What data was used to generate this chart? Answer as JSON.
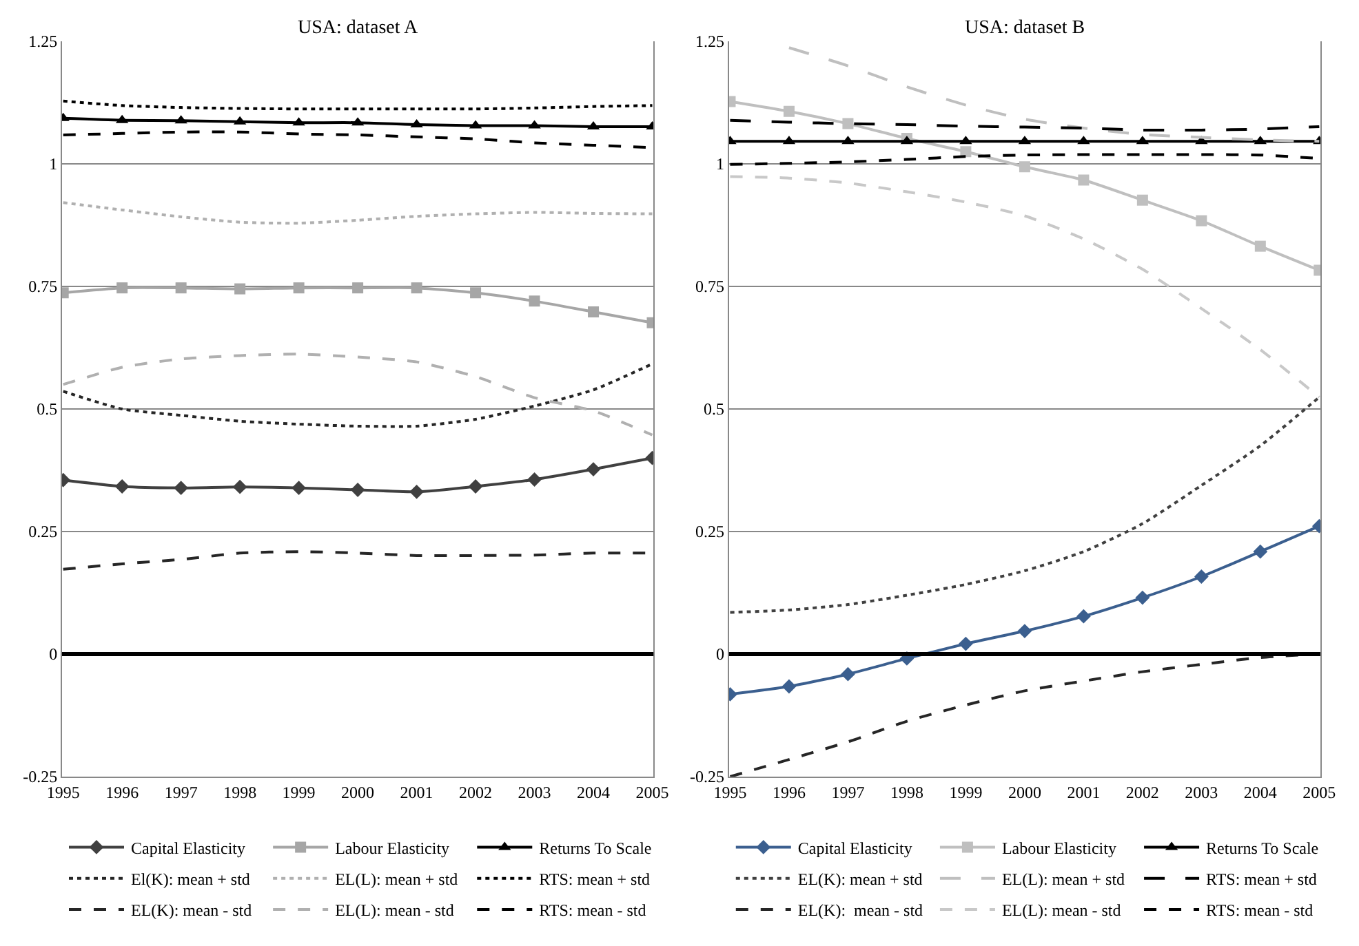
{
  "chart_data": [
    {
      "type": "line",
      "title": "USA: dataset A",
      "categories": [
        "1995",
        "1996",
        "1997",
        "1998",
        "1999",
        "2000",
        "2001",
        "2002",
        "2003",
        "2004",
        "2005"
      ],
      "ylim": [
        -0.25,
        1.25
      ],
      "yticks": [
        -0.25,
        0,
        0.25,
        0.5,
        0.75,
        1,
        1.25
      ],
      "grid": "y",
      "legend": "bottom",
      "ref_lines": [
        {
          "axis": "y",
          "value": 0,
          "color": "#000000"
        }
      ],
      "series": [
        {
          "name": "Capital Elasticity",
          "color": "#404040",
          "marker": "diamond",
          "line_style": "solid",
          "values": [
            0.355,
            0.342,
            0.339,
            0.341,
            0.339,
            0.335,
            0.331,
            0.342,
            0.356,
            0.377,
            0.4
          ]
        },
        {
          "name": "Labour Elasticity",
          "color": "#a6a6a6",
          "marker": "square",
          "line_style": "solid",
          "values": [
            0.737,
            0.747,
            0.747,
            0.745,
            0.747,
            0.747,
            0.747,
            0.737,
            0.72,
            0.698,
            0.676
          ]
        },
        {
          "name": "Returns To Scale",
          "color": "#000000",
          "marker": "triangle",
          "line_style": "solid",
          "values": [
            1.093,
            1.089,
            1.088,
            1.086,
            1.084,
            1.084,
            1.08,
            1.078,
            1.078,
            1.076,
            1.076
          ]
        },
        {
          "name": "El(K): mean + std",
          "color": "#262626",
          "marker": "none",
          "line_style": "dotted",
          "values": [
            0.536,
            0.5,
            0.487,
            0.475,
            0.469,
            0.465,
            0.465,
            0.479,
            0.506,
            0.539,
            0.592
          ]
        },
        {
          "name": "EL(L): mean + std",
          "color": "#b0b0b0",
          "marker": "none",
          "line_style": "dotted",
          "values": [
            0.921,
            0.906,
            0.892,
            0.881,
            0.879,
            0.885,
            0.893,
            0.898,
            0.901,
            0.899,
            0.898
          ]
        },
        {
          "name": "RTS: mean + std",
          "color": "#000000",
          "marker": "none",
          "line_style": "dotted",
          "values": [
            1.128,
            1.119,
            1.115,
            1.113,
            1.112,
            1.112,
            1.112,
            1.112,
            1.114,
            1.117,
            1.119
          ]
        },
        {
          "name": "EL(K): mean - std",
          "color": "#262626",
          "marker": "none",
          "line_style": "dashed",
          "values": [
            0.173,
            0.184,
            0.193,
            0.206,
            0.209,
            0.206,
            0.201,
            0.201,
            0.202,
            0.206,
            0.206
          ]
        },
        {
          "name": "EL(L): mean - std",
          "color": "#b0b0b0",
          "marker": "none",
          "line_style": "dashed",
          "values": [
            0.55,
            0.585,
            0.602,
            0.609,
            0.612,
            0.606,
            0.596,
            0.566,
            0.523,
            0.496,
            0.447
          ]
        },
        {
          "name": "RTS: mean - std",
          "color": "#000000",
          "marker": "none",
          "line_style": "dashed",
          "values": [
            1.059,
            1.062,
            1.065,
            1.065,
            1.061,
            1.059,
            1.055,
            1.051,
            1.043,
            1.038,
            1.033
          ]
        }
      ]
    },
    {
      "type": "line",
      "title": "USA: dataset B",
      "categories": [
        "1995",
        "1996",
        "1997",
        "1998",
        "1999",
        "2000",
        "2001",
        "2002",
        "2003",
        "2004",
        "2005"
      ],
      "ylim": [
        -0.25,
        1.25
      ],
      "yticks": [
        -0.25,
        0,
        0.25,
        0.5,
        0.75,
        1,
        1.25
      ],
      "grid": "y",
      "legend": "bottom",
      "ref_lines": [
        {
          "axis": "y",
          "value": 0,
          "color": "#000000"
        }
      ],
      "series": [
        {
          "name": "Capital Elasticity",
          "color": "#3b5f8f",
          "marker": "diamond",
          "line_style": "solid",
          "values": [
            -0.082,
            -0.066,
            -0.041,
            -0.009,
            0.021,
            0.047,
            0.077,
            0.115,
            0.158,
            0.209,
            0.261
          ]
        },
        {
          "name": "Labour Elasticity",
          "color": "#bfbfbf",
          "marker": "square",
          "line_style": "solid",
          "values": [
            1.127,
            1.107,
            1.082,
            1.052,
            1.025,
            0.994,
            0.967,
            0.926,
            0.884,
            0.832,
            0.783
          ]
        },
        {
          "name": "Returns To Scale",
          "color": "#000000",
          "marker": "triangle",
          "line_style": "solid",
          "values": [
            1.046,
            1.046,
            1.046,
            1.046,
            1.046,
            1.046,
            1.046,
            1.046,
            1.046,
            1.046,
            1.046
          ]
        },
        {
          "name": "EL(K): mean + std",
          "color": "#404040",
          "marker": "none",
          "line_style": "dotted",
          "values": [
            0.085,
            0.09,
            0.101,
            0.12,
            0.142,
            0.17,
            0.209,
            0.266,
            0.344,
            0.425,
            0.524
          ]
        },
        {
          "name": "EL(L): mean + std",
          "color": "#bfbfbf",
          "marker": "none",
          "line_style": "longdash",
          "values": [
            null,
            1.237,
            1.2,
            1.157,
            1.12,
            1.091,
            1.073,
            1.06,
            1.054,
            1.049,
            1.046
          ]
        },
        {
          "name": "RTS: mean + std",
          "color": "#000000",
          "marker": "none",
          "line_style": "longdash",
          "values": [
            1.089,
            1.085,
            1.082,
            1.08,
            1.077,
            1.075,
            1.073,
            1.069,
            1.069,
            1.071,
            1.076
          ]
        },
        {
          "name": "EL(K):  mean - std",
          "color": "#262626",
          "marker": "none",
          "line_style": "dashed",
          "values": [
            -0.25,
            -0.215,
            -0.179,
            -0.137,
            -0.104,
            -0.075,
            -0.055,
            -0.036,
            -0.021,
            -0.007,
            0
          ]
        },
        {
          "name": "EL(L): mean - std",
          "color": "#c8c8c8",
          "marker": "none",
          "line_style": "dashed",
          "values": [
            0.974,
            0.971,
            0.961,
            0.943,
            0.922,
            0.894,
            0.847,
            0.785,
            0.705,
            0.621,
            0.524
          ]
        },
        {
          "name": "RTS: mean - std",
          "color": "#000000",
          "marker": "none",
          "line_style": "dashed",
          "values": [
            0.999,
            1.001,
            1.004,
            1.009,
            1.015,
            1.018,
            1.019,
            1.019,
            1.019,
            1.018,
            1.011
          ]
        }
      ]
    }
  ]
}
